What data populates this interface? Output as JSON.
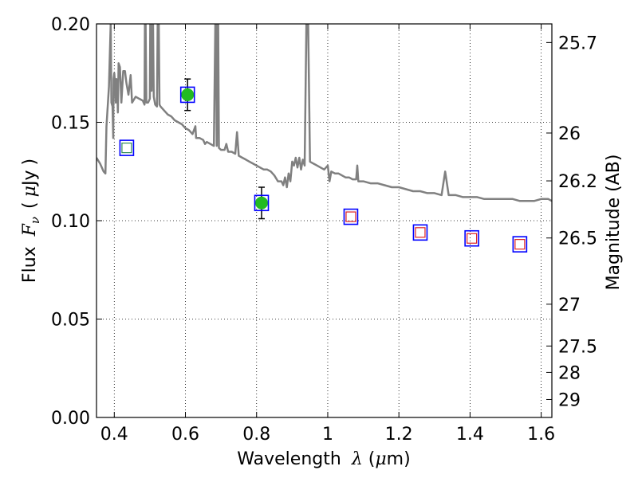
{
  "chart_data": {
    "type": "scatter",
    "xlabel": {
      "prefix": "Wavelength",
      "symbol": "λ",
      "unit_open": "(",
      "unit_mu": "μ",
      "unit_rest": "m)"
    },
    "ylabel": {
      "prefix": "Flux",
      "symbol": "F",
      "subscript": "ν",
      "unit_open": "(",
      "unit_mu": "μ",
      "unit_rest": "Jy",
      "unit_close": ")"
    },
    "y2label": "Magnitude (AB)",
    "xlim": [
      0.35,
      1.63
    ],
    "ylim": [
      0.0,
      0.2
    ],
    "grid": true,
    "x_ticks": [
      {
        "value": 0.4,
        "label": "0.4"
      },
      {
        "value": 0.6,
        "label": "0.6"
      },
      {
        "value": 0.8,
        "label": "0.8"
      },
      {
        "value": 1.0,
        "label": "1"
      },
      {
        "value": 1.2,
        "label": "1.2"
      },
      {
        "value": 1.4,
        "label": "1.4"
      },
      {
        "value": 1.6,
        "label": "1.6"
      }
    ],
    "y_ticks": [
      {
        "value": 0.0,
        "label": "0.00"
      },
      {
        "value": 0.05,
        "label": "0.05"
      },
      {
        "value": 0.1,
        "label": "0.10"
      },
      {
        "value": 0.15,
        "label": "0.15"
      },
      {
        "value": 0.2,
        "label": "0.20"
      }
    ],
    "mag_ticks": [
      {
        "value": 25.7,
        "label": "25.7"
      },
      {
        "value": 26.0,
        "label": "26"
      },
      {
        "value": 26.2,
        "label": "26.2"
      },
      {
        "value": 26.5,
        "label": "26.5"
      },
      {
        "value": 27.0,
        "label": "27"
      },
      {
        "value": 27.5,
        "label": "27.5"
      },
      {
        "value": 28.0,
        "label": "28"
      },
      {
        "value": 29.0,
        "label": "29"
      }
    ],
    "observed": [
      {
        "x": 0.606,
        "y": 0.164,
        "yerr": 0.008
      },
      {
        "x": 0.814,
        "y": 0.109,
        "yerr": 0.008
      }
    ],
    "model_points": [
      {
        "x": 0.435,
        "y": 0.137
      },
      {
        "x": 0.606,
        "y": 0.164
      },
      {
        "x": 0.814,
        "y": 0.109
      },
      {
        "x": 1.065,
        "y": 0.102
      },
      {
        "x": 1.26,
        "y": 0.094
      },
      {
        "x": 1.405,
        "y": 0.091
      },
      {
        "x": 1.54,
        "y": 0.088
      }
    ],
    "inner_markers": [
      {
        "x": 0.435,
        "y": 0.137,
        "color": "#2e8b57"
      },
      {
        "x": 1.065,
        "y": 0.102,
        "color": "#dd2222"
      },
      {
        "x": 1.26,
        "y": 0.094,
        "color": "#dd2222"
      },
      {
        "x": 1.405,
        "y": 0.091,
        "color": "#dd2222"
      },
      {
        "x": 1.54,
        "y": 0.088,
        "color": "#dd2222"
      }
    ],
    "spectrum": [
      [
        0.35,
        0.132
      ],
      [
        0.36,
        0.129
      ],
      [
        0.365,
        0.127
      ],
      [
        0.37,
        0.125
      ],
      [
        0.375,
        0.124
      ],
      [
        0.378,
        0.148
      ],
      [
        0.385,
        0.168
      ],
      [
        0.39,
        0.2
      ],
      [
        0.392,
        0.16
      ],
      [
        0.395,
        0.158
      ],
      [
        0.397,
        0.142
      ],
      [
        0.398,
        0.172
      ],
      [
        0.4,
        0.175
      ],
      [
        0.402,
        0.17
      ],
      [
        0.404,
        0.16
      ],
      [
        0.406,
        0.172
      ],
      [
        0.408,
        0.17
      ],
      [
        0.41,
        0.155
      ],
      [
        0.412,
        0.18
      ],
      [
        0.416,
        0.178
      ],
      [
        0.42,
        0.16
      ],
      [
        0.425,
        0.176
      ],
      [
        0.43,
        0.176
      ],
      [
        0.434,
        0.17
      ],
      [
        0.44,
        0.164
      ],
      [
        0.446,
        0.174
      ],
      [
        0.45,
        0.16
      ],
      [
        0.46,
        0.163
      ],
      [
        0.47,
        0.162
      ],
      [
        0.48,
        0.161
      ],
      [
        0.485,
        0.159
      ],
      [
        0.486,
        0.2
      ],
      [
        0.488,
        0.2
      ],
      [
        0.49,
        0.16
      ],
      [
        0.495,
        0.16
      ],
      [
        0.5,
        0.162
      ],
      [
        0.501,
        0.2
      ],
      [
        0.503,
        0.2
      ],
      [
        0.505,
        0.166
      ],
      [
        0.507,
        0.2
      ],
      [
        0.509,
        0.2
      ],
      [
        0.511,
        0.163
      ],
      [
        0.515,
        0.159
      ],
      [
        0.52,
        0.158
      ],
      [
        0.522,
        0.2
      ],
      [
        0.525,
        0.2
      ],
      [
        0.527,
        0.159
      ],
      [
        0.53,
        0.158
      ],
      [
        0.54,
        0.156
      ],
      [
        0.55,
        0.154
      ],
      [
        0.56,
        0.153
      ],
      [
        0.57,
        0.151
      ],
      [
        0.58,
        0.15
      ],
      [
        0.59,
        0.149
      ],
      [
        0.6,
        0.147
      ],
      [
        0.61,
        0.146
      ],
      [
        0.62,
        0.144
      ],
      [
        0.628,
        0.148
      ],
      [
        0.63,
        0.142
      ],
      [
        0.64,
        0.142
      ],
      [
        0.65,
        0.141
      ],
      [
        0.655,
        0.139
      ],
      [
        0.66,
        0.14
      ],
      [
        0.67,
        0.139
      ],
      [
        0.68,
        0.138
      ],
      [
        0.684,
        0.2
      ],
      [
        0.686,
        0.2
      ],
      [
        0.688,
        0.138
      ],
      [
        0.69,
        0.2
      ],
      [
        0.692,
        0.2
      ],
      [
        0.694,
        0.137
      ],
      [
        0.7,
        0.136
      ],
      [
        0.71,
        0.136
      ],
      [
        0.715,
        0.139
      ],
      [
        0.72,
        0.135
      ],
      [
        0.73,
        0.135
      ],
      [
        0.74,
        0.134
      ],
      [
        0.745,
        0.145
      ],
      [
        0.75,
        0.133
      ],
      [
        0.76,
        0.132
      ],
      [
        0.77,
        0.131
      ],
      [
        0.78,
        0.13
      ],
      [
        0.79,
        0.129
      ],
      [
        0.8,
        0.128
      ],
      [
        0.81,
        0.127
      ],
      [
        0.82,
        0.126
      ],
      [
        0.83,
        0.126
      ],
      [
        0.84,
        0.125
      ],
      [
        0.85,
        0.123
      ],
      [
        0.86,
        0.12
      ],
      [
        0.87,
        0.12
      ],
      [
        0.875,
        0.118
      ],
      [
        0.88,
        0.122
      ],
      [
        0.885,
        0.117
      ],
      [
        0.89,
        0.124
      ],
      [
        0.895,
        0.12
      ],
      [
        0.9,
        0.13
      ],
      [
        0.905,
        0.128
      ],
      [
        0.91,
        0.132
      ],
      [
        0.915,
        0.127
      ],
      [
        0.92,
        0.132
      ],
      [
        0.925,
        0.126
      ],
      [
        0.93,
        0.131
      ],
      [
        0.935,
        0.128
      ],
      [
        0.94,
        0.2
      ],
      [
        0.945,
        0.2
      ],
      [
        0.95,
        0.13
      ],
      [
        0.96,
        0.129
      ],
      [
        0.97,
        0.128
      ],
      [
        0.98,
        0.127
      ],
      [
        0.99,
        0.126
      ],
      [
        1.0,
        0.128
      ],
      [
        1.005,
        0.12
      ],
      [
        1.01,
        0.125
      ],
      [
        1.02,
        0.124
      ],
      [
        1.03,
        0.124
      ],
      [
        1.04,
        0.123
      ],
      [
        1.05,
        0.122
      ],
      [
        1.06,
        0.122
      ],
      [
        1.07,
        0.121
      ],
      [
        1.08,
        0.121
      ],
      [
        1.083,
        0.128
      ],
      [
        1.086,
        0.12
      ],
      [
        1.1,
        0.12
      ],
      [
        1.12,
        0.119
      ],
      [
        1.14,
        0.119
      ],
      [
        1.16,
        0.118
      ],
      [
        1.18,
        0.117
      ],
      [
        1.2,
        0.117
      ],
      [
        1.22,
        0.116
      ],
      [
        1.24,
        0.115
      ],
      [
        1.26,
        0.115
      ],
      [
        1.28,
        0.114
      ],
      [
        1.3,
        0.114
      ],
      [
        1.32,
        0.113
      ],
      [
        1.33,
        0.125
      ],
      [
        1.34,
        0.113
      ],
      [
        1.36,
        0.113
      ],
      [
        1.38,
        0.112
      ],
      [
        1.4,
        0.112
      ],
      [
        1.42,
        0.112
      ],
      [
        1.44,
        0.111
      ],
      [
        1.46,
        0.111
      ],
      [
        1.48,
        0.111
      ],
      [
        1.5,
        0.111
      ],
      [
        1.52,
        0.111
      ],
      [
        1.54,
        0.11
      ],
      [
        1.56,
        0.11
      ],
      [
        1.58,
        0.11
      ],
      [
        1.6,
        0.111
      ],
      [
        1.62,
        0.111
      ],
      [
        1.63,
        0.11
      ]
    ],
    "colors": {
      "spectrum": "#808080",
      "observed_fill": "#22bb22",
      "error_bar": "#000000",
      "model_square": "#0000ff"
    }
  }
}
